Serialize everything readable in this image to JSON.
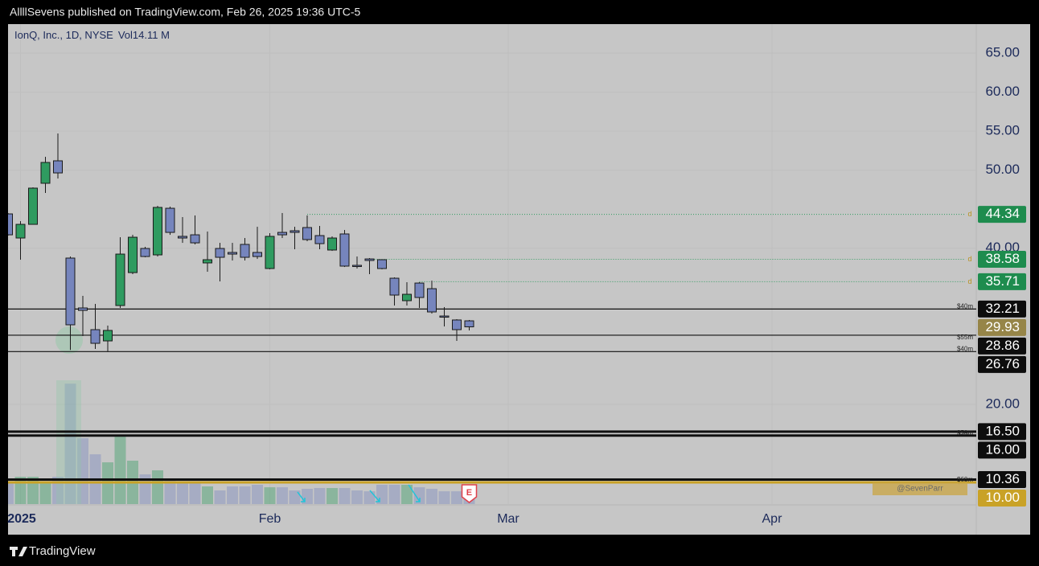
{
  "header": {
    "publisher": "AllllSevens published on TradingView.com, Feb 26, 2025 19:36 UTC-5"
  },
  "footer": {
    "brand": "TradingView"
  },
  "chart_data": {
    "type": "candlestick",
    "title": "IonQ, Inc., 1D, NYSE",
    "volume_label": "Vol",
    "volume_value": "14.11 M",
    "open": [
      44.4,
      41.31,
      43.06,
      48.32,
      51.2,
      38.74,
      32.35,
      29.57,
      28.13,
      32.66,
      36.88,
      39.97,
      39.15,
      45.12,
      41.52,
      41.72,
      38.12,
      39.97,
      39.46,
      40.49,
      39.46,
      37.4,
      42.03,
      42.24,
      42.65,
      41.62,
      39.77,
      41.83,
      37.81,
      38.63,
      38.53,
      36.16,
      33.28,
      35.54,
      34.82,
      31.32,
      30.81,
      30.7
    ],
    "high": [
      44.51,
      43.47,
      47.8,
      51.71,
      54.7,
      38.94,
      33.9,
      32.87,
      30.09,
      41.41,
      41.72,
      40.18,
      45.43,
      45.33,
      43.99,
      44.2,
      42.14,
      40.69,
      40.69,
      41.31,
      42.75,
      41.93,
      44.51,
      42.75,
      44.2,
      42.86,
      41.52,
      42.34,
      38.94,
      38.74,
      38.53,
      36.27,
      35.65,
      35.65,
      35.85,
      32.46,
      30.91,
      30.81
    ],
    "low": [
      41.62,
      38.53,
      43.06,
      47.08,
      48.93,
      26.97,
      28.75,
      27.1,
      26.79,
      32.35,
      36.68,
      38.84,
      38.94,
      41.72,
      40.69,
      40.49,
      36.99,
      35.75,
      38.43,
      38.43,
      38.63,
      37.3,
      41.31,
      39.87,
      40.9,
      39.87,
      39.66,
      37.6,
      37.4,
      36.68,
      37.3,
      32.66,
      32.66,
      32.35,
      31.63,
      29.98,
      28.13,
      29.47
    ],
    "close": [
      41.72,
      43.06,
      47.7,
      50.99,
      49.65,
      30.19,
      32.04,
      27.82,
      29.47,
      39.25,
      41.41,
      38.94,
      45.23,
      42.03,
      41.31,
      40.69,
      38.53,
      38.84,
      39.25,
      38.84,
      38.94,
      41.52,
      41.72,
      42.03,
      41.11,
      40.59,
      41.31,
      37.71,
      37.71,
      38.43,
      37.4,
      34.0,
      34.1,
      33.69,
      31.84,
      31.22,
      29.57,
      29.93
    ],
    "volume": [
      24.4,
      32.0,
      32.0,
      25.4,
      32.0,
      141.0,
      77.1,
      58.3,
      48.9,
      79.0,
      50.8,
      34.8,
      39.5,
      28.2,
      25.4,
      25.4,
      20.7,
      16.0,
      20.7,
      20.7,
      22.6,
      19.7,
      19.7,
      16.0,
      17.9,
      18.8,
      18.8,
      18.8,
      16.0,
      15.0,
      22.6,
      22.6,
      22.6,
      19.7,
      17.9,
      15.0,
      15.0,
      14.11
    ],
    "up_color": "#2f9b60",
    "down_color": "#7685bd",
    "xlim": [
      0,
      77.68
    ],
    "xticks": [
      {
        "value": 1,
        "label": "2025"
      },
      {
        "value": 21,
        "label": "Feb"
      },
      {
        "value": 40.13,
        "label": "Mar"
      },
      {
        "value": 61.29,
        "label": "Apr"
      }
    ],
    "ylim": [
      7.12,
      68.71
    ],
    "yticks": [
      {
        "value": 20,
        "label": "20.00"
      },
      {
        "value": 40,
        "label": "40.00"
      },
      {
        "value": 50,
        "label": "50.00"
      },
      {
        "value": 55,
        "label": "55.00"
      },
      {
        "value": 60,
        "label": "60.00"
      },
      {
        "value": 65,
        "label": "65.00"
      }
    ],
    "vlim": [
      0,
      160
    ],
    "levels": [
      {
        "value": 32.21,
        "label": "$40m",
        "color": "#111111"
      },
      {
        "value": 28.86,
        "label": "$55m",
        "color": "#111111"
      },
      {
        "value": 26.76,
        "label": "$40m",
        "color": "#111111"
      },
      {
        "value": 16.5,
        "label": "$25m",
        "color": "#111111"
      },
      {
        "value": 16.0,
        "label": "$50m",
        "color": "#111111"
      },
      {
        "value": 10.36,
        "label": "$40m",
        "color": "#111111"
      },
      {
        "value": 10.0,
        "label": "$60m",
        "color": "#c9a227"
      }
    ],
    "dotted_levels": [
      {
        "value": 44.34,
        "start": 24,
        "label": "d"
      },
      {
        "value": 38.58,
        "start": 29,
        "label": "d"
      },
      {
        "value": 35.71,
        "start": 33,
        "label": "d"
      }
    ],
    "price_labels": [
      {
        "value": 44.34,
        "color": "#1e8c4e"
      },
      {
        "value": 38.58,
        "color": "#1e8c4e"
      },
      {
        "value": 35.71,
        "color": "#1e8c4e"
      },
      {
        "value": 32.21,
        "color": "#0d0d0d"
      },
      {
        "value": 29.93,
        "color": "#968548"
      },
      {
        "value": 28.86,
        "color": "#0d0d0d"
      },
      {
        "value": 26.76,
        "color": "#0d0d0d"
      },
      {
        "value": 16.5,
        "label": "16.50",
        "color": "#0d0d0d"
      },
      {
        "value": 16.0,
        "label": "16.00",
        "color": "#0d0d0d"
      },
      {
        "value": 10.36,
        "color": "#0d0d0d"
      },
      {
        "value": 10.0,
        "label": "10.00",
        "color": "#c9a227"
      }
    ],
    "events": [
      {
        "x": 37,
        "label": "E"
      }
    ],
    "watermark": "@SevenParr"
  }
}
